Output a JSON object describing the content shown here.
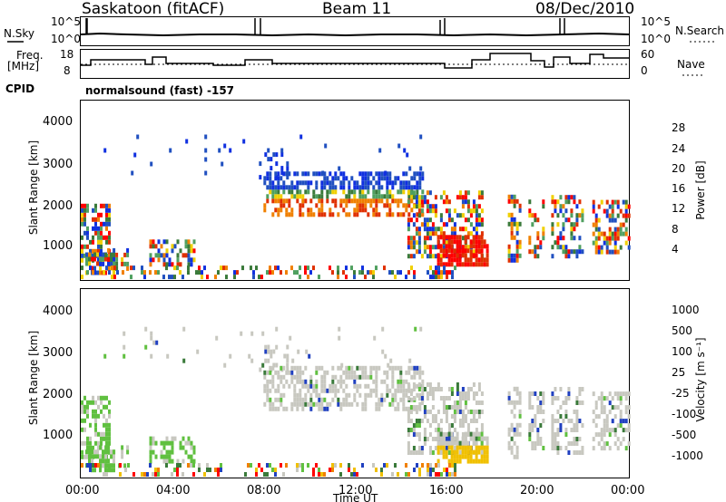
{
  "header": {
    "station": "Saskatoon (fitACF)",
    "beam": "Beam 11",
    "date": "08/Dec/2010"
  },
  "status": {
    "nsky_label": "N.Sky",
    "nsky_ticks": [
      "10^5",
      "10^0"
    ],
    "nsearch_label": "N.Search",
    "nsearch_ticks": [
      "10^5",
      "10^0"
    ],
    "freq_label_1": "Freq.",
    "freq_label_2": "[MHz]",
    "freq_ticks": [
      "18",
      "8"
    ],
    "nave_label": "Nave",
    "nave_ticks": [
      "60",
      "0"
    ],
    "cpid_label": "CPID",
    "cpid_value": "normalsound (fast) -157"
  },
  "chart_data": [
    {
      "type": "heatmap",
      "name": "power",
      "ylabel": "Slant Range [km]",
      "y_ticks": [
        "4000",
        "3000",
        "2000",
        "1000"
      ],
      "colorbar_label": "Power [dB]",
      "colorbar_ticks": [
        "28",
        "24",
        "20",
        "16",
        "12",
        "8",
        "4"
      ],
      "colors": [
        "#1030e0",
        "#2050c0",
        "#3a7a3a",
        "#50a060",
        "#f0d000",
        "#f08000",
        "#e03000",
        "#ff0000"
      ],
      "ylim": [
        180,
        4500
      ],
      "xlim_hours": [
        0,
        24
      ]
    },
    {
      "type": "heatmap",
      "name": "velocity",
      "ylabel": "Slant Range [km]",
      "y_ticks": [
        "4000",
        "3000",
        "2000",
        "1000"
      ],
      "colorbar_label": "Velocity [m s⁻¹]",
      "colorbar_ticks": [
        "1000",
        "500",
        "100",
        "25",
        "-25",
        "-100",
        "-500",
        "-1000"
      ],
      "colors": [
        "#2040c0",
        "#3a7a3a",
        "#60c040",
        "#c8c8c0",
        "#f0c000",
        "#f08000",
        "#ff0000"
      ],
      "ylim": [
        180,
        4500
      ],
      "xlim_hours": [
        0,
        24
      ]
    }
  ],
  "x_axis": {
    "ticks": [
      "00:00",
      "04:00",
      "08:00",
      "12:00",
      "16:00",
      "20:00",
      "00:00"
    ],
    "label": "Time UT"
  }
}
